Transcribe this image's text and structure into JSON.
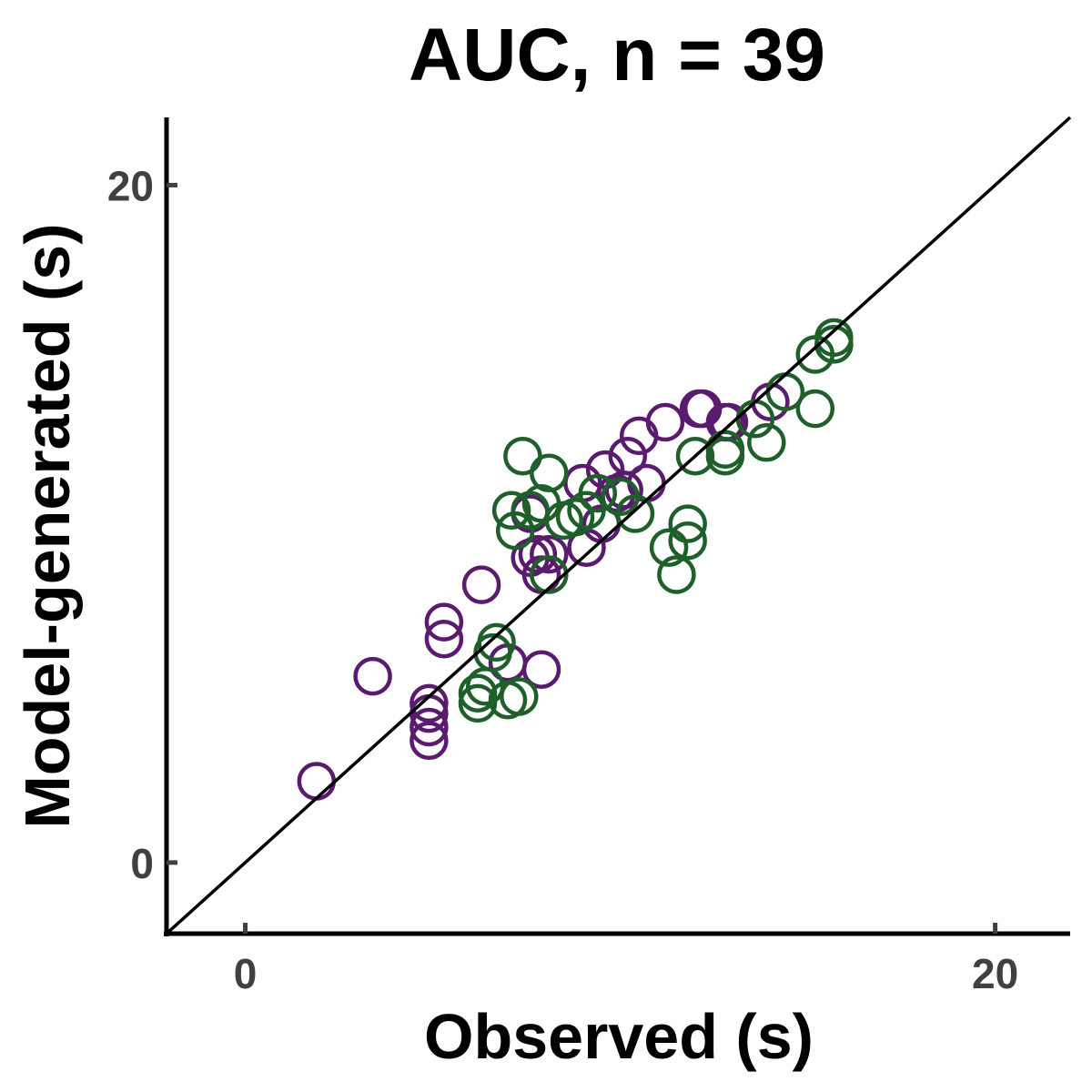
{
  "chart_data": {
    "type": "scatter",
    "title": "AUC, n = 39",
    "xlabel": "Observed (s)",
    "ylabel": "Model-generated (s)",
    "xlim": [
      -2.1,
      22.0
    ],
    "ylim": [
      -2.1,
      22.0
    ],
    "xticks": [
      0,
      20
    ],
    "yticks": [
      0,
      20
    ],
    "grid": false,
    "identity_line": true,
    "series": [
      {
        "color": "#5a1a6e",
        "x": [
          1.9,
          3.4,
          4.9,
          4.9,
          4.9,
          4.9,
          5.3,
          5.3,
          6.3,
          7.0,
          7.6,
          7.6,
          7.8,
          7.9,
          7.9,
          8.1,
          9.0,
          9.1,
          9.5,
          9.6,
          9.9,
          10.1,
          10.2,
          10.5,
          10.7,
          11.2,
          12.1,
          12.2,
          12.8,
          12.9,
          14.0,
          15.7
        ],
        "y": [
          2.4,
          5.5,
          3.6,
          4.0,
          4.4,
          4.7,
          6.6,
          7.1,
          8.2,
          5.9,
          10.3,
          9.0,
          9.1,
          8.5,
          5.7,
          9.1,
          11.2,
          9.3,
          10.0,
          11.6,
          10.9,
          11.0,
          12.0,
          12.6,
          11.2,
          13.0,
          13.4,
          13.4,
          13.0,
          13.0,
          13.6,
          15.3
        ]
      },
      {
        "color": "#1e5f2a",
        "x": [
          7.0,
          6.2,
          6.2,
          7.3,
          6.4,
          6.6,
          6.7,
          7.2,
          8.1,
          8.1,
          7.4,
          7.1,
          7.6,
          7.9,
          8.5,
          8.8,
          9.4,
          9.1,
          10.0,
          10.4,
          11.3,
          11.5,
          11.8,
          11.8,
          12.0,
          12.8,
          12.8,
          13.6,
          13.9,
          14.4,
          15.2,
          15.2,
          15.7,
          15.7
        ],
        "y": [
          4.8,
          4.7,
          5.0,
          4.9,
          5.2,
          6.2,
          6.5,
          9.8,
          8.5,
          11.5,
          12.0,
          10.4,
          10.4,
          10.6,
          10.1,
          10.2,
          10.9,
          10.4,
          10.8,
          10.3,
          9.3,
          8.5,
          9.5,
          10.0,
          12.0,
          12.2,
          12.0,
          13.1,
          12.4,
          13.9,
          13.4,
          15.0,
          15.3,
          15.5
        ]
      }
    ]
  }
}
